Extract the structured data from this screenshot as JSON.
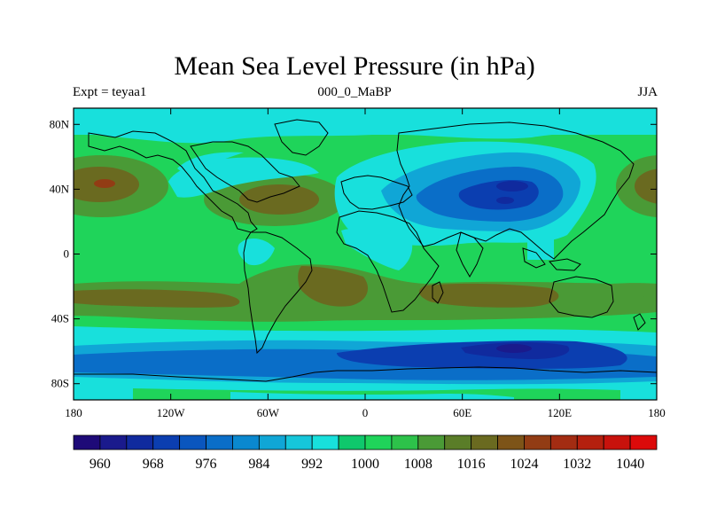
{
  "title": "Mean Sea Level Pressure (in hPa)",
  "subtitle_left": "Expt = teyaa1",
  "subtitle_center": "000_0_MaBP",
  "subtitle_right": "JJA",
  "lat_ticks": [
    {
      "value": 80,
      "label": "80N"
    },
    {
      "value": 40,
      "label": "40N"
    },
    {
      "value": 0,
      "label": "0"
    },
    {
      "value": -40,
      "label": "40S"
    },
    {
      "value": -80,
      "label": "80S"
    }
  ],
  "lon_ticks": [
    {
      "value": -180,
      "label": "180"
    },
    {
      "value": -120,
      "label": "120W"
    },
    {
      "value": -60,
      "label": "60W"
    },
    {
      "value": 0,
      "label": "0"
    },
    {
      "value": 60,
      "label": "60E"
    },
    {
      "value": 120,
      "label": "120E"
    },
    {
      "value": 180,
      "label": "180"
    }
  ],
  "colorbar": {
    "levels": [
      960,
      964,
      968,
      972,
      976,
      980,
      984,
      988,
      992,
      996,
      1000,
      1004,
      1008,
      1012,
      1016,
      1020,
      1024,
      1028,
      1032,
      1036,
      1040
    ],
    "labeled": [
      "960",
      "968",
      "976",
      "984",
      "992",
      "1000",
      "1008",
      "1016",
      "1024",
      "1032",
      "1040"
    ],
    "colors": [
      "#1e0a78",
      "#1a1a8c",
      "#102a9e",
      "#0b3eb0",
      "#0a56be",
      "#0a6ec8",
      "#0a88cf",
      "#10a6d6",
      "#16c6da",
      "#18e0dc",
      "#0fc86c",
      "#1fd45a",
      "#2dc24a",
      "#4a9a36",
      "#5a7d28",
      "#6a6a20",
      "#7d5418",
      "#923c14",
      "#a32c12",
      "#b4200e",
      "#c8120c",
      "#dc0a0a"
    ]
  },
  "colors": {
    "ocean_base": "#0fc86c",
    "coastline": "#000000"
  }
}
